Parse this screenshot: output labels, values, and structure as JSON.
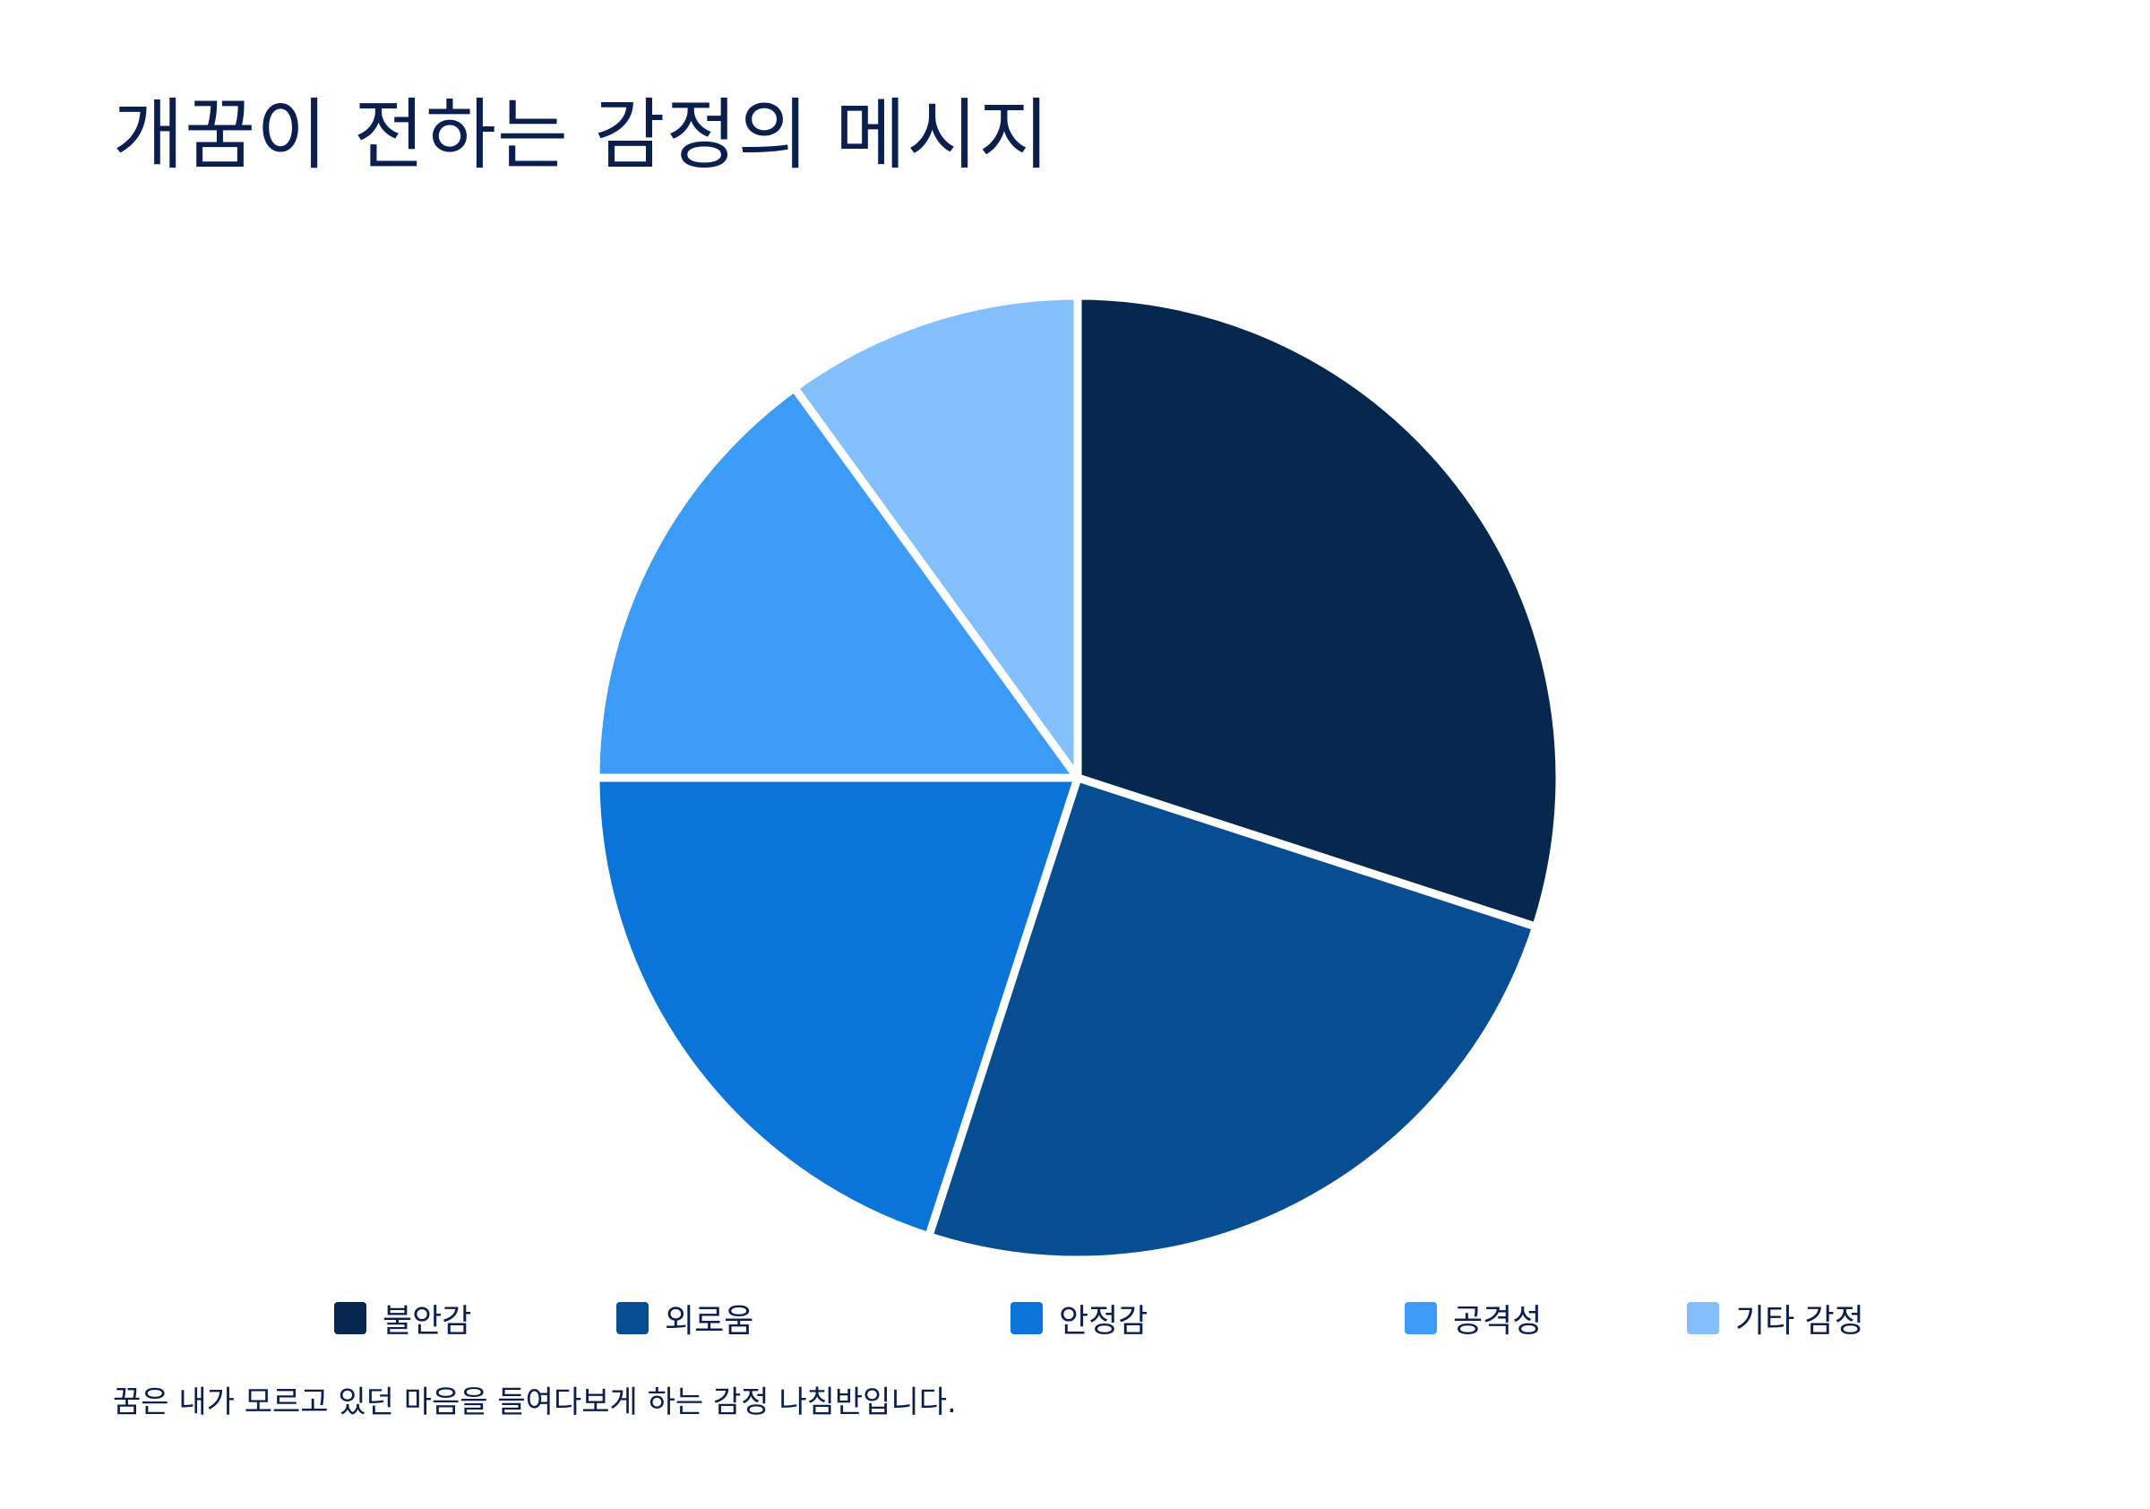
{
  "chart_data": {
    "type": "pie",
    "title": "개꿈이 전하는 감정의 메시지",
    "caption": "꿈은 내가 모르고 있던 마음을 들여다보게 하는 감정 나침반입니다.",
    "categories": [
      "불안감",
      "외로움",
      "안정감",
      "공격성",
      "기타 감정"
    ],
    "values": [
      30,
      25,
      20,
      15,
      10
    ],
    "colors": [
      "#06284f",
      "#064d91",
      "#0a74d9",
      "#3b9bf6",
      "#83bffa"
    ],
    "legend_position": "bottom"
  }
}
